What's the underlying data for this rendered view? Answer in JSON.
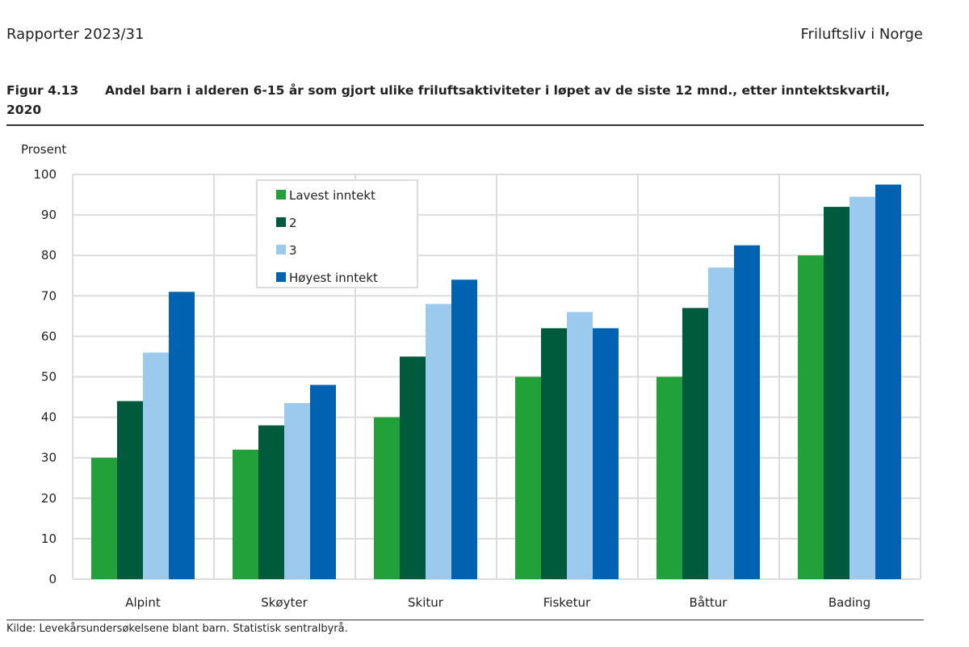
{
  "header": {
    "left": "Rapporter 2023/31",
    "right": "Friluftsliv i Norge"
  },
  "figure": {
    "number": "Figur 4.13",
    "title": "Andel barn i alderen 6-15 år som gjort ulike friluftsaktiviteter i løpet av de siste 12 mnd., etter inntektskvartil, 2020"
  },
  "source": "Kilde: Levekårsundersøkelsene blant barn. Statistisk sentralbyrå.",
  "chart_data": {
    "type": "bar",
    "title": "",
    "ylabel": "Prosent",
    "xlabel": "",
    "ylim": [
      0,
      100
    ],
    "yticks": [
      0,
      10,
      20,
      30,
      40,
      50,
      60,
      70,
      80,
      90,
      100
    ],
    "grid": true,
    "legend_position": "top-center",
    "categories": [
      "Alpint",
      "Skøyter",
      "Skitur",
      "Fisketur",
      "Båttur",
      "Bading"
    ],
    "series": [
      {
        "name": "Lavest inntekt",
        "color": "#22a03a",
        "values": [
          30,
          32,
          40,
          50,
          50,
          80
        ]
      },
      {
        "name": "2",
        "color": "#005a3c",
        "values": [
          44,
          38,
          55,
          62,
          67,
          92
        ]
      },
      {
        "name": "3",
        "color": "#9ccaee",
        "values": [
          56,
          43.5,
          68,
          66,
          77,
          94.5
        ]
      },
      {
        "name": "Høyest inntekt",
        "color": "#0062b0",
        "values": [
          71,
          48,
          74,
          62,
          82.5,
          97.5
        ]
      }
    ]
  }
}
